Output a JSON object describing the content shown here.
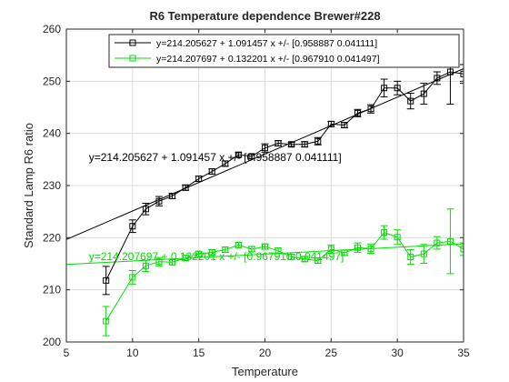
{
  "chart_data": {
    "type": "line",
    "title": "R6 Temperature dependence Brewer#228",
    "xlabel": "Temperature",
    "ylabel": "Standard Lamp R6 ratio",
    "xlim": [
      5,
      35
    ],
    "ylim": [
      200,
      260
    ],
    "xticks": [
      5,
      10,
      15,
      20,
      25,
      30,
      35
    ],
    "yticks": [
      200,
      210,
      220,
      230,
      240,
      250,
      260
    ],
    "grid": true,
    "legend_position": "top-right",
    "colors": {
      "series_black": "#000000",
      "series_green": "#00dd00",
      "axes": "#262626",
      "grid": "#dcdcdc"
    },
    "series": [
      {
        "name": "y=214.205627 + 1.091457 x +/- [0.958887 0.041111]",
        "color": "#000000",
        "marker": "square",
        "x": [
          8,
          10,
          11,
          12,
          13,
          14,
          15,
          16,
          17,
          18,
          19,
          20,
          21,
          22,
          23,
          24,
          25,
          26,
          27,
          28,
          29,
          30,
          31,
          32,
          33,
          34,
          35
        ],
        "y": [
          211.8,
          222.2,
          225.5,
          227.0,
          228.0,
          229.6,
          231.3,
          232.7,
          234.2,
          235.9,
          235.6,
          237.2,
          238.1,
          237.9,
          237.9,
          238.5,
          241.8,
          241.6,
          243.9,
          244.7,
          248.7,
          248.7,
          246.2,
          247.6,
          250.6,
          251.8,
          251.4
        ],
        "err": [
          2.7,
          1.2,
          1.1,
          0.9,
          0.5,
          0.5,
          0.5,
          0.5,
          0.5,
          0.4,
          0.4,
          0.8,
          0.5,
          0.4,
          0.5,
          0.7,
          0.5,
          0.5,
          0.7,
          0.8,
          1.7,
          1.3,
          1.5,
          2.0,
          1.2,
          6.2,
          1.8
        ],
        "fit": {
          "intercept": 214.205627,
          "slope": 1.091457
        }
      },
      {
        "name": "y=214.207697 + 0.132201 x +/- [0.967910 0.041497]",
        "color": "#00dd00",
        "marker": "square",
        "x": [
          8,
          10,
          11,
          12,
          13,
          14,
          15,
          16,
          17,
          18,
          19,
          20,
          21,
          22,
          23,
          24,
          25,
          26,
          27,
          28,
          29,
          30,
          31,
          32,
          33,
          34,
          35
        ],
        "y": [
          204.0,
          212.4,
          214.6,
          215.4,
          215.3,
          216.1,
          216.9,
          217.2,
          217.7,
          218.6,
          217.8,
          218.3,
          217.5,
          216.3,
          215.9,
          215.6,
          217.8,
          217.1,
          218.1,
          217.9,
          221.0,
          220.1,
          216.3,
          216.9,
          219.0,
          219.3,
          217.8
        ],
        "err": [
          2.8,
          1.3,
          1.1,
          0.8,
          0.5,
          0.5,
          0.5,
          0.5,
          0.5,
          0.5,
          0.5,
          0.5,
          0.5,
          0.5,
          0.5,
          0.5,
          0.8,
          0.5,
          0.9,
          0.9,
          1.3,
          1.4,
          1.4,
          1.8,
          1.2,
          6.2,
          1.2
        ],
        "fit": {
          "intercept": 214.207697,
          "slope": 0.132201
        }
      }
    ],
    "annotations": [
      {
        "text": "y=214.205627 + 1.091457 x +/- [0.958887 0.041111]",
        "x": 6.7,
        "y": 235.4,
        "color": "#000000"
      },
      {
        "text": "y=214.207697 + 0.132201 x +/- [0.967910 0.041497]",
        "x": 6.7,
        "y": 216.4,
        "color": "#00dd00"
      }
    ]
  }
}
